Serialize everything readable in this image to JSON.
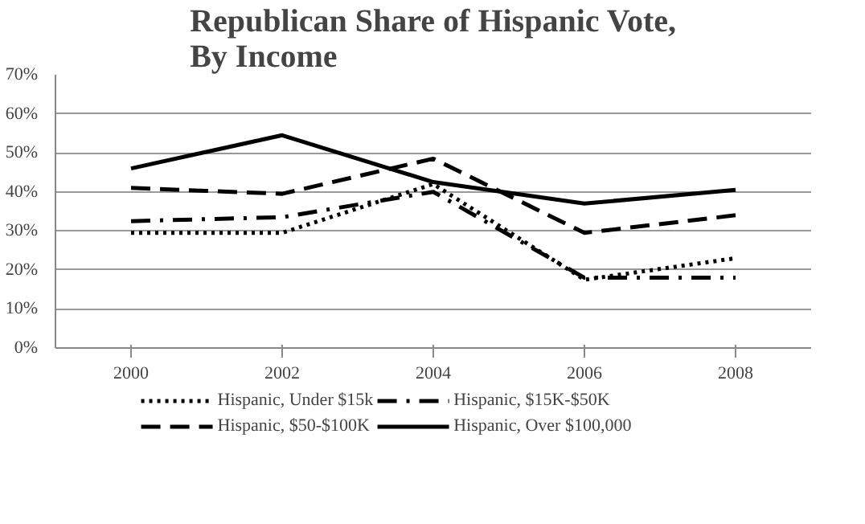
{
  "chart_data": {
    "type": "line",
    "title": "Republican Share of Hispanic Vote, By Income",
    "categories": [
      "2000",
      "2002",
      "2004",
      "2006",
      "2008"
    ],
    "series": [
      {
        "name": "Hispanic, Under $15k",
        "color": "#000000",
        "line_style": "dotted",
        "values": [
          29.5,
          29.5,
          42,
          17.5,
          23
        ]
      },
      {
        "name": "Hispanic, $15K-$50K",
        "color": "#000000",
        "line_style": "dashdot",
        "values": [
          32.5,
          33.5,
          40,
          18,
          18
        ]
      },
      {
        "name": "Hispanic, $50-$100K",
        "color": "#000000",
        "line_style": "dashed",
        "values": [
          41,
          39.5,
          48.5,
          29.5,
          34
        ]
      },
      {
        "name": "Hispanic, Over $100,000",
        "color": "#000000",
        "line_style": "solid",
        "values": [
          46,
          54.5,
          42.5,
          37,
          40.5
        ]
      }
    ],
    "ylim": [
      0,
      70
    ],
    "yticks": [
      {
        "value": 0,
        "label": "0%"
      },
      {
        "value": 10,
        "label": "10%"
      },
      {
        "value": 20,
        "label": "20%"
      },
      {
        "value": 30,
        "label": "30%"
      },
      {
        "value": 40,
        "label": "40%"
      },
      {
        "value": 50,
        "label": "50%"
      },
      {
        "value": 60,
        "label": "60%"
      },
      {
        "value": 70,
        "label": "70%"
      }
    ],
    "grid": "y",
    "legend": "bottom",
    "marker": "none"
  }
}
